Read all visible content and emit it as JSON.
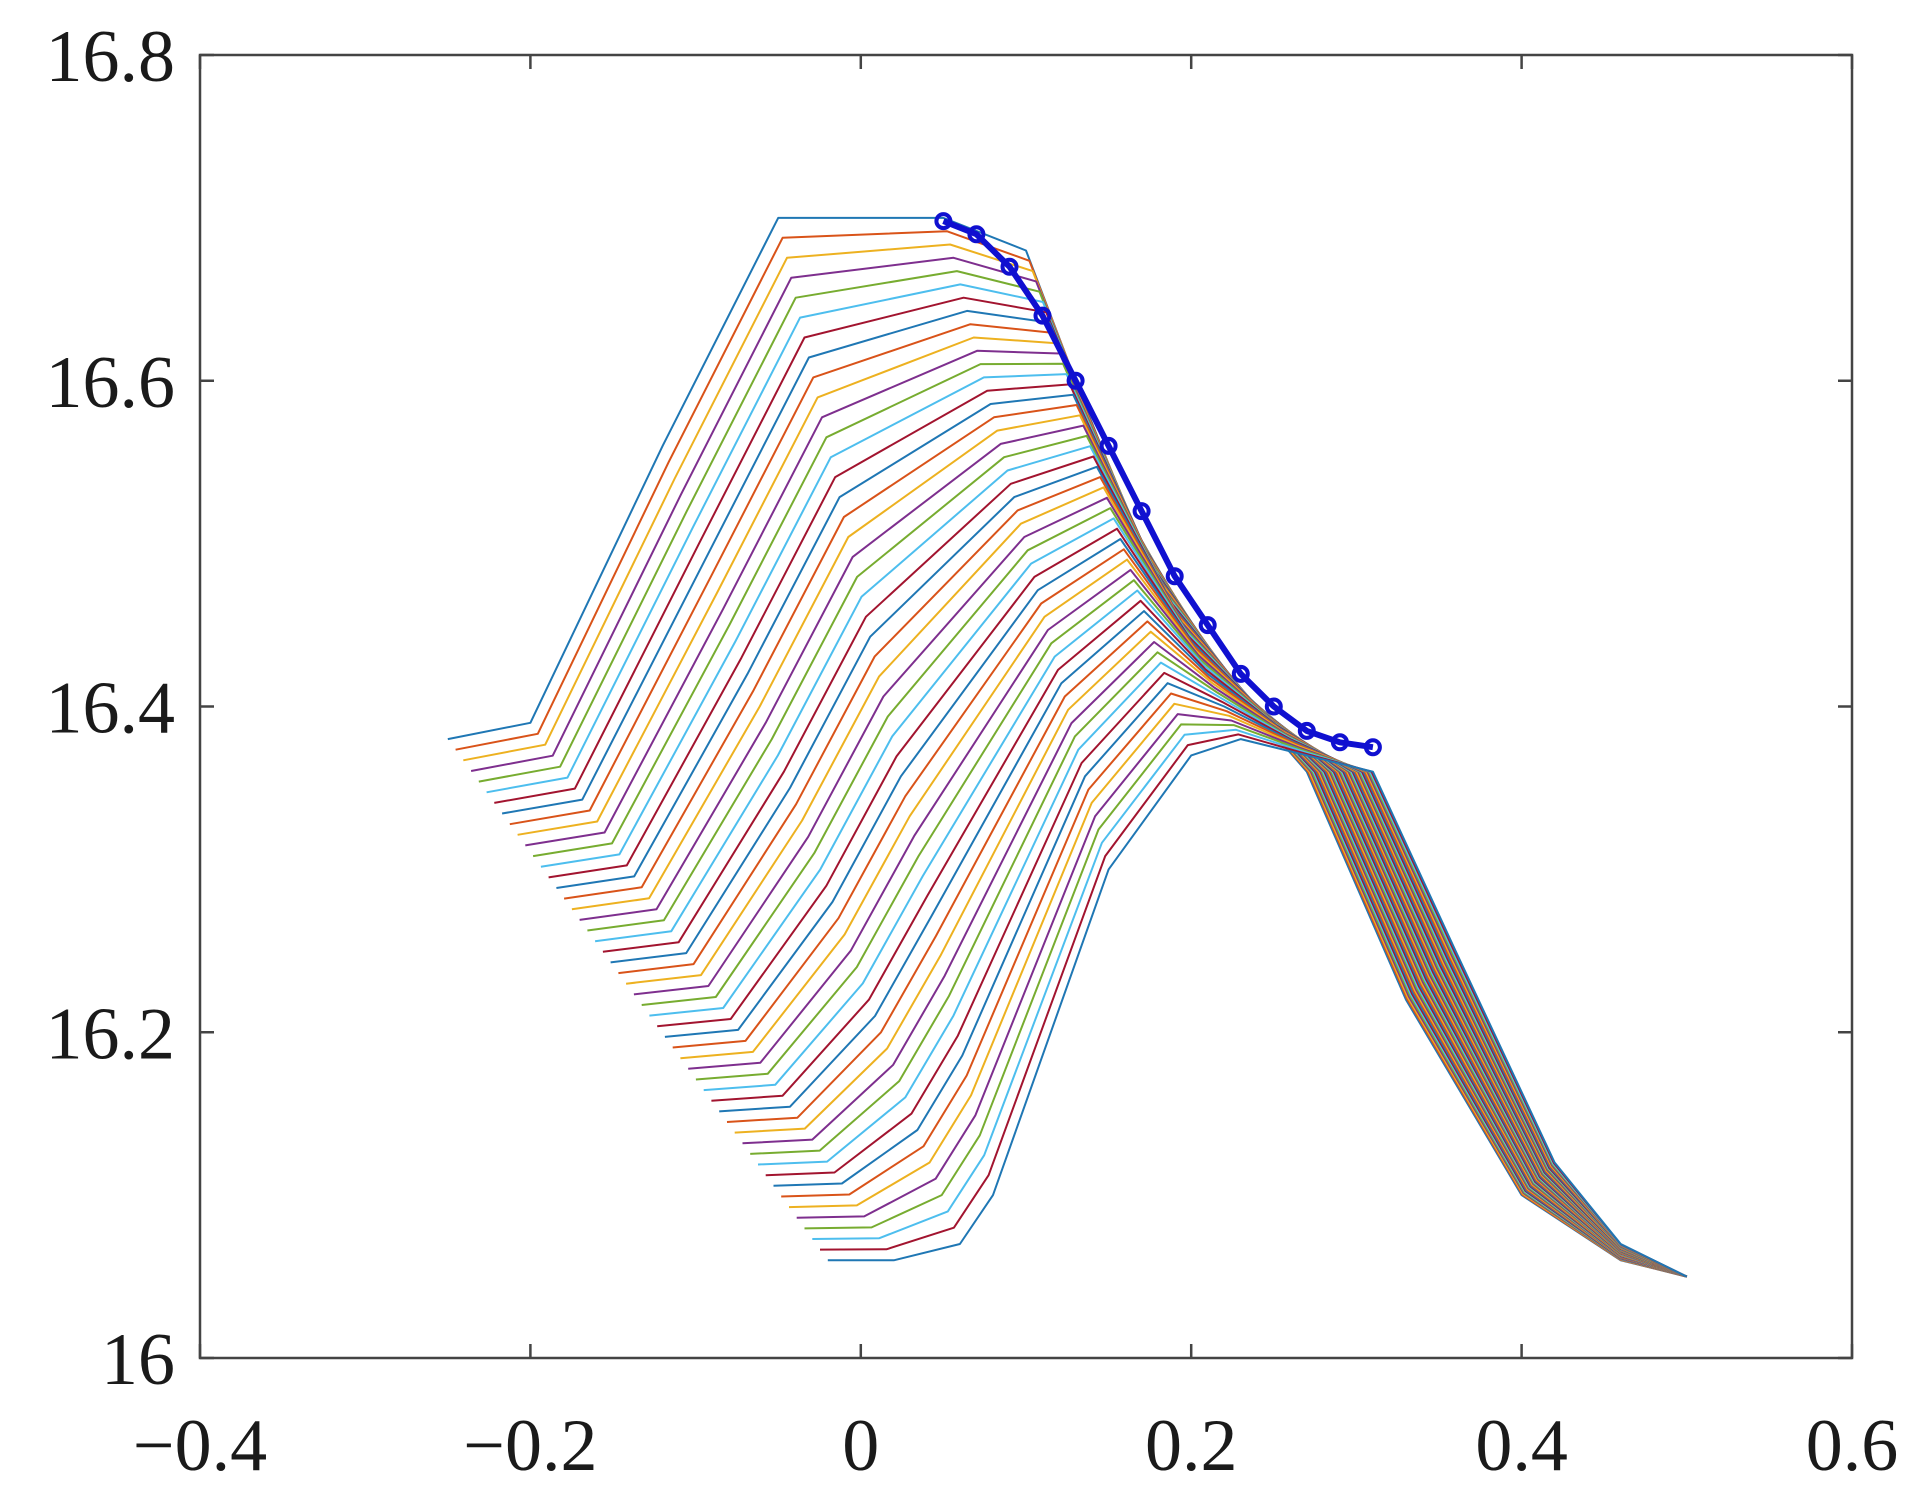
{
  "chart_data": {
    "type": "line",
    "title": "",
    "xlabel": "",
    "ylabel": "",
    "xlim": [
      -0.4,
      0.6
    ],
    "ylim": [
      16.0,
      16.8
    ],
    "xticks": [
      -0.4,
      -0.2,
      0,
      0.2,
      0.4,
      0.6
    ],
    "yticks": [
      16.0,
      16.2,
      16.4,
      16.6,
      16.8
    ],
    "xtick_labels": [
      "−0.4",
      "−0.2",
      "0",
      "0.2",
      "0.4",
      "0.6"
    ],
    "ytick_labels": [
      "16",
      "16.2",
      "16.4",
      "16.6",
      "16.8"
    ],
    "grid": false,
    "legend": "none",
    "family": {
      "count": 50,
      "description_source": "each curve is a ramp-plateau-valley profile; curves are shifted step by step",
      "first": {
        "x": [
          -0.25,
          -0.2,
          -0.12,
          -0.05,
          0.05,
          0.1,
          0.16,
          0.21,
          0.27,
          0.33,
          0.4,
          0.46,
          0.5
        ],
        "y": [
          16.38,
          16.39,
          16.56,
          16.7,
          16.7,
          16.68,
          16.52,
          16.43,
          16.36,
          16.22,
          16.1,
          16.06,
          16.05
        ]
      },
      "last": {
        "x": [
          -0.02,
          0.02,
          0.06,
          0.08,
          0.15,
          0.2,
          0.23,
          0.27,
          0.31,
          0.36,
          0.42,
          0.46,
          0.5
        ],
        "y": [
          16.06,
          16.06,
          16.07,
          16.1,
          16.3,
          16.37,
          16.38,
          16.37,
          16.36,
          16.25,
          16.12,
          16.07,
          16.05
        ]
      },
      "colors": [
        "#1f77b4",
        "#d95319",
        "#edb120",
        "#7e2f8e",
        "#77ac30",
        "#4dbeee",
        "#a2142f"
      ]
    },
    "series": [
      {
        "style": "blue circles",
        "color": "#1010d0",
        "x": [
          0.05,
          0.07,
          0.09,
          0.11,
          0.13,
          0.15,
          0.17,
          0.19,
          0.21,
          0.23,
          0.25,
          0.27,
          0.29,
          0.31
        ],
        "y": [
          16.698,
          16.69,
          16.67,
          16.64,
          16.6,
          16.56,
          16.52,
          16.48,
          16.45,
          16.42,
          16.4,
          16.385,
          16.378,
          16.375
        ]
      }
    ]
  }
}
